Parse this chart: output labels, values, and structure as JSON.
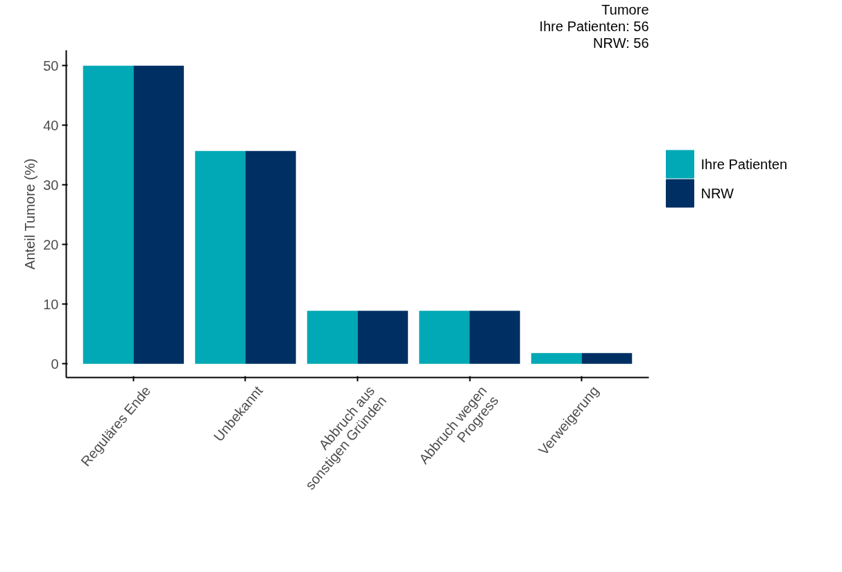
{
  "chart_data": {
    "type": "bar",
    "ylabel": "Anteil Tumore (%)",
    "annotations": [
      "Tumore",
      "Ihre Patienten: 56",
      "NRW: 56"
    ],
    "categories": [
      "Reguläres Ende",
      "Unbekannt",
      "Abbruch aus\nsonstigen Gründen",
      "Abbruch wegen\nProgress",
      "Verweigerung"
    ],
    "series": [
      {
        "name": "Ihre Patienten",
        "color": "#00a9b5",
        "values": [
          50,
          35.7,
          8.9,
          8.9,
          1.8
        ]
      },
      {
        "name": "NRW",
        "color": "#003063",
        "values": [
          50,
          35.7,
          8.9,
          8.9,
          1.8
        ]
      }
    ],
    "ylim": [
      -2.3,
      52.6
    ],
    "yticks": [
      0,
      10,
      20,
      30,
      40,
      50
    ],
    "grid": false,
    "legend": "right"
  }
}
